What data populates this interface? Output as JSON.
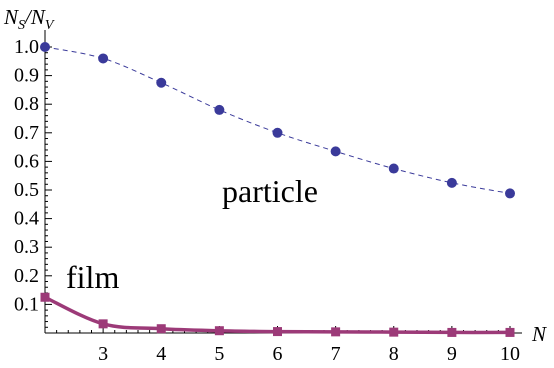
{
  "chart_data": {
    "type": "line",
    "title": "",
    "ylabel": {
      "main": "N",
      "sub1": "S",
      "mid": "/N",
      "sub2": "V"
    },
    "xlabel": "N",
    "xlim": [
      2,
      10
    ],
    "ylim": [
      0,
      1.0
    ],
    "x_ticks": [
      "3",
      "4",
      "5",
      "6",
      "7",
      "8",
      "9",
      "10"
    ],
    "y_ticks": [
      "0.1",
      "0.2",
      "0.3",
      "0.4",
      "0.5",
      "0.6",
      "0.7",
      "0.8",
      "0.9",
      "1.0"
    ],
    "annotations": [
      "particle",
      "film"
    ],
    "grid": false,
    "series": [
      {
        "key": "particle",
        "color": "#3a3a9a",
        "line_style": "dashed",
        "marker": "circle",
        "x": [
          2,
          3,
          4,
          5,
          6,
          7,
          8,
          9,
          10
        ],
        "y": [
          1.0,
          0.96,
          0.875,
          0.78,
          0.7,
          0.635,
          0.575,
          0.525,
          0.488
        ]
      },
      {
        "key": "film",
        "color": "#9c3a78",
        "line_style": "solid",
        "marker": "square",
        "x": [
          2,
          3,
          4,
          5,
          6,
          7,
          8,
          9,
          10
        ],
        "y": [
          0.125,
          0.032,
          0.015,
          0.008,
          0.005,
          0.004,
          0.003,
          0.002,
          0.002
        ]
      }
    ]
  }
}
